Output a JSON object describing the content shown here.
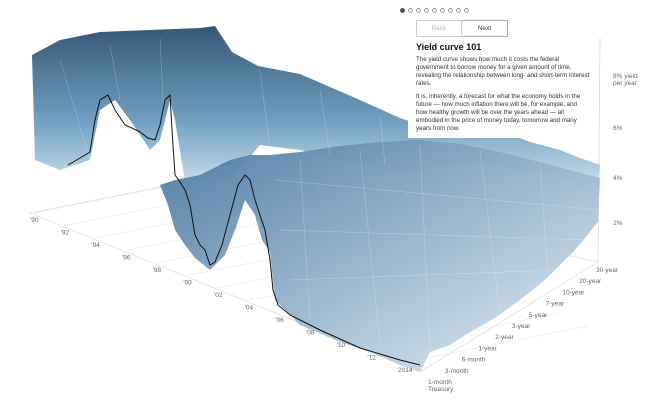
{
  "pager": {
    "count": 9,
    "active": 0
  },
  "nav": {
    "back_label": "Back",
    "next_label": "Next",
    "back_disabled": true
  },
  "card": {
    "title": "Yield curve 101",
    "para1": "The yield curve shows how much it costs the federal government to borrow money for a given amount of time, revealing the relationship between long- and short-term interest rates.",
    "para2": "It is, inherently, a forecast for what the economy holds in the future — how much inflation there will be, for example, and how healthy growth will be over the years ahead — all embodied in the price of money today, tomorrow and many years from now."
  },
  "chart_data": {
    "type": "area",
    "title": "",
    "x_ticks": [
      "'90",
      "'92",
      "'94",
      "'96",
      "'98",
      "'00",
      "'02",
      "'04",
      "'06",
      "'08",
      "'10",
      "'12",
      "2014"
    ],
    "maturities": [
      "1-month\nTreasury",
      "3-month",
      "6-month",
      "1-year",
      "2-year",
      "3-year",
      "5-year",
      "7-year",
      "10-year",
      "20-year",
      "30-year"
    ],
    "z_ticks": [
      "2%",
      "4%",
      "6%",
      "8% yield\nper year"
    ],
    "ylim": [
      0,
      9
    ],
    "colors": {
      "surface_dark": "#2b4e6e",
      "surface_light": "#dcecf6",
      "grid": "#cccccc"
    }
  }
}
